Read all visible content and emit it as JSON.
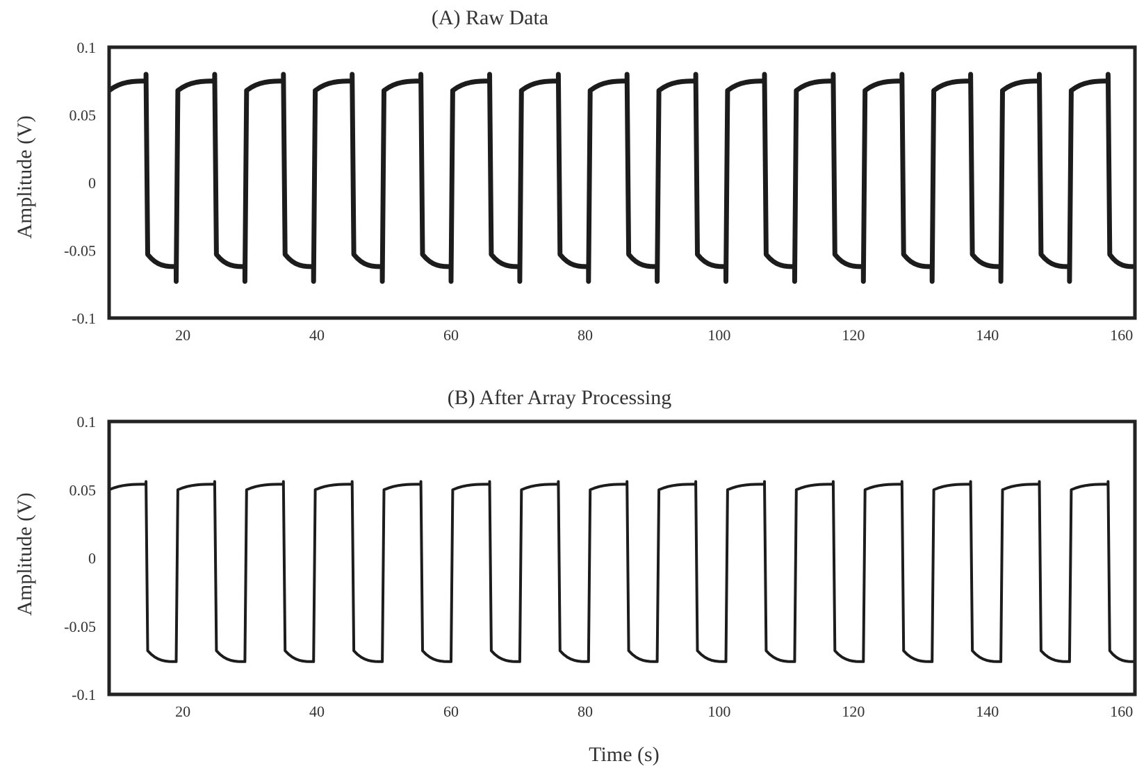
{
  "figure": {
    "xlabel": "Time (s)"
  },
  "chart_data": [
    {
      "type": "line",
      "title": "(A) Raw Data",
      "ylabel": "Amplitude (V)",
      "xlim": [
        9,
        162
      ],
      "ylim": [
        -0.1,
        0.1
      ],
      "yticks": [
        -0.1,
        -0.05,
        0,
        0.05,
        0.1
      ],
      "ytick_labels": [
        "-0.1",
        "-0.05",
        "0",
        "0.05",
        "0.1"
      ],
      "xticks": [
        20,
        40,
        60,
        80,
        100,
        120,
        140,
        160
      ],
      "xtick_labels": [
        "20",
        "40",
        "60",
        "80",
        "100",
        "120",
        "140",
        "160"
      ],
      "grid": false,
      "signal": {
        "shape": "square-wave",
        "period_s": 10,
        "first_high_start_s": 9,
        "high_duration_s": 5.5,
        "high_level_start": 0.068,
        "high_level_end": 0.075,
        "low_level_start": -0.053,
        "low_level_end": -0.062,
        "overshoot_high": 0.08,
        "overshoot_low": -0.073
      },
      "series": [
        {
          "values_note": "",
          "color": "#1c1c1c"
        }
      ]
    },
    {
      "type": "line",
      "title": "(B) After Array Processing",
      "ylabel": "Amplitude (V)",
      "xlim": [
        9,
        162
      ],
      "ylim": [
        -0.1,
        0.1
      ],
      "yticks": [
        -0.1,
        -0.05,
        0,
        0.05,
        0.1
      ],
      "ytick_labels": [
        "-0.1",
        "-0.05",
        "0",
        "0.05",
        "0.1"
      ],
      "xticks": [
        20,
        40,
        60,
        80,
        100,
        120,
        140,
        160
      ],
      "xtick_labels": [
        "20",
        "40",
        "60",
        "80",
        "100",
        "120",
        "140",
        "160"
      ],
      "grid": false,
      "signal": {
        "shape": "square-wave",
        "period_s": 10,
        "first_high_start_s": 9,
        "high_duration_s": 5.5,
        "high_level_start": 0.05,
        "high_level_end": 0.054,
        "low_level_start": -0.068,
        "low_level_end": -0.076,
        "overshoot_high": 0.056,
        "overshoot_low": -0.076
      },
      "series": [
        {
          "values_note": "",
          "color": "#1c1c1c"
        }
      ]
    }
  ]
}
